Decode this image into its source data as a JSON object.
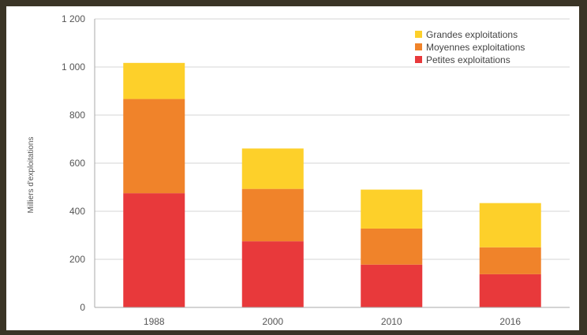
{
  "chart_data": {
    "type": "bar",
    "stacked": true,
    "categories": [
      "1988",
      "2000",
      "2010",
      "2016"
    ],
    "series": [
      {
        "name": "Petites exploitations",
        "color": "#e8393b",
        "values": [
          475,
          275,
          178,
          138
        ]
      },
      {
        "name": "Moyennes exploitations",
        "color": "#f0832a",
        "values": [
          392,
          218,
          150,
          112
        ]
      },
      {
        "name": "Grandes exploitations",
        "color": "#fdd02a",
        "values": [
          150,
          168,
          162,
          184
        ]
      }
    ],
    "legend_order": [
      2,
      1,
      0
    ],
    "ylabel": "Milliers d'exploitations",
    "yticks": [
      "0",
      "200",
      "400",
      "600",
      "800",
      "1 000",
      "1 200"
    ],
    "ylim": [
      0,
      1200
    ],
    "grid": true,
    "legend_position": "top-right"
  }
}
